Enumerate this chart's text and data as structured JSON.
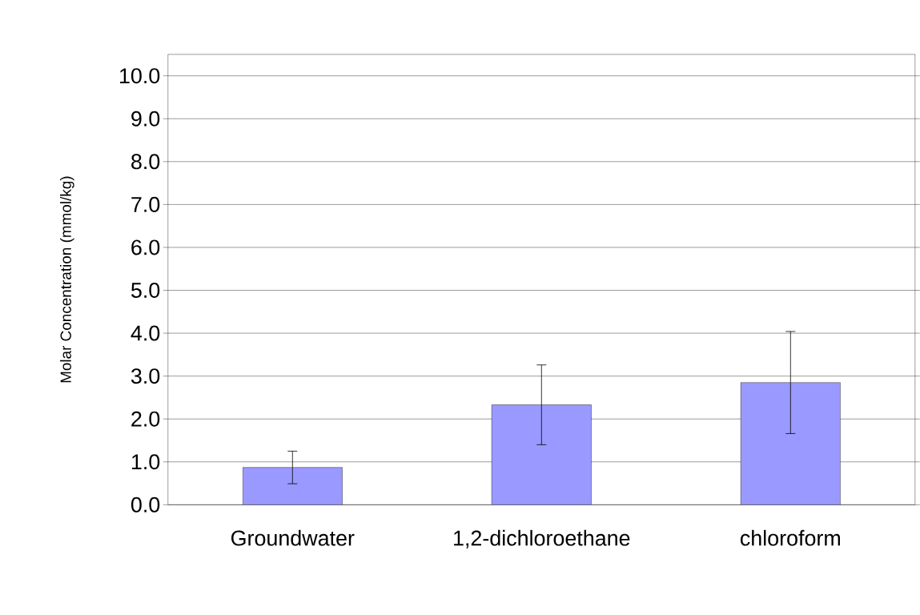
{
  "chart_data": {
    "type": "bar",
    "ylabel": "Molar Concentration (mmol/kg)",
    "categories": [
      "Groundwater",
      "1,2-dichloroethane",
      "chloroform"
    ],
    "values": [
      0.87,
      2.33,
      2.85
    ],
    "errors": [
      0.38,
      0.93,
      1.19
    ],
    "color": "#9999ff",
    "ylim": [
      0,
      10.5
    ],
    "yticks": [
      {
        "value": 0,
        "label": "0.0"
      },
      {
        "value": 1,
        "label": "1.0"
      },
      {
        "value": 2,
        "label": "2.0"
      },
      {
        "value": 3,
        "label": "3.0"
      },
      {
        "value": 4,
        "label": "4.0"
      },
      {
        "value": 5,
        "label": "5.0"
      },
      {
        "value": 6,
        "label": "6.0"
      },
      {
        "value": 7,
        "label": "7.0"
      },
      {
        "value": 8,
        "label": "8.0"
      },
      {
        "value": 9,
        "label": "9.0"
      },
      {
        "value": 10,
        "label": "10.0"
      }
    ],
    "grid": "y"
  }
}
